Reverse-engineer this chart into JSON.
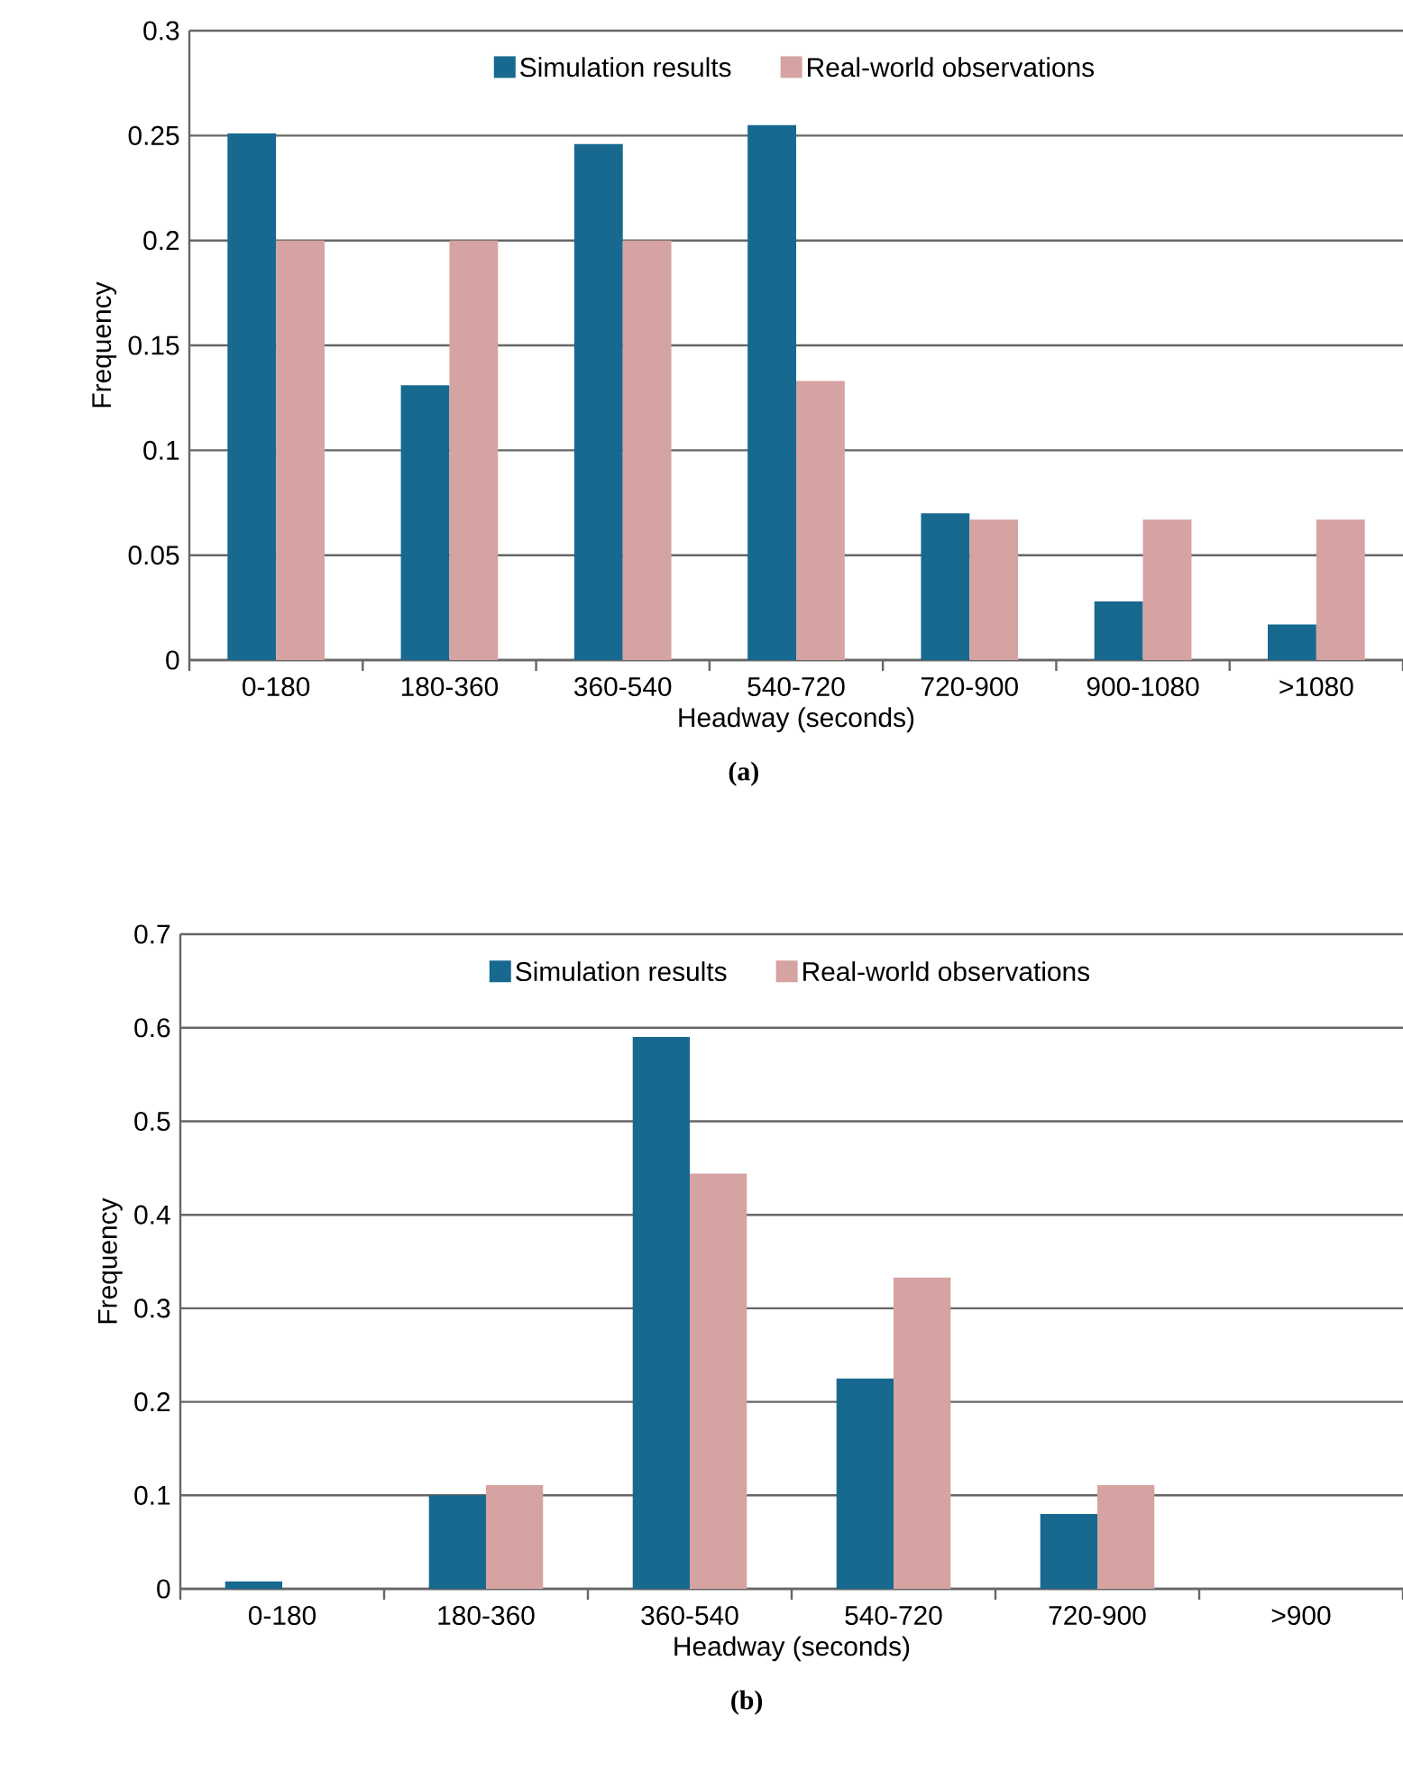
{
  "chart_data": [
    {
      "type": "bar",
      "categories": [
        "0-180",
        "180-360",
        "360-540",
        "540-720",
        "720-900",
        "900-1080",
        ">1080"
      ],
      "xlabel": "Headway (seconds)",
      "ylabel": "Frequency",
      "ylim": [
        0,
        0.3
      ],
      "yticks": [
        0,
        0.05,
        0.1,
        0.15,
        0.2,
        0.25,
        0.3
      ],
      "grid": "y",
      "legend": "top",
      "annotations": [
        "(a)"
      ],
      "series": [
        {
          "name": "Simulation results",
          "color": "#17698f",
          "values": [
            0.251,
            0.131,
            0.246,
            0.255,
            0.07,
            0.028,
            0.017
          ]
        },
        {
          "name": "Real-world observations",
          "color": "#d5a3a2",
          "values": [
            0.2,
            0.2,
            0.2,
            0.133,
            0.067,
            0.067,
            0.067
          ]
        }
      ]
    },
    {
      "type": "bar",
      "categories": [
        "0-180",
        "180-360",
        "360-540",
        "540-720",
        "720-900",
        ">900"
      ],
      "xlabel": "Headway (seconds)",
      "ylabel": "Frequency",
      "ylim": [
        0,
        0.7
      ],
      "yticks": [
        0,
        0.1,
        0.2,
        0.3,
        0.4,
        0.5,
        0.6,
        0.7
      ],
      "grid": "y",
      "legend": "top",
      "annotations": [
        "(b)"
      ],
      "series": [
        {
          "name": "Simulation results",
          "color": "#17698f",
          "values": [
            0.008,
            0.1,
            0.59,
            0.225,
            0.08,
            0
          ]
        },
        {
          "name": "Real-world observations",
          "color": "#d5a3a2",
          "values": [
            0,
            0.111,
            0.444,
            0.333,
            0.111,
            0
          ]
        }
      ]
    }
  ]
}
